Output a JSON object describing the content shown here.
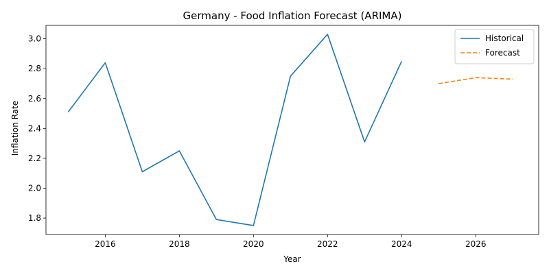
{
  "chart_data": {
    "type": "line",
    "title": "Germany - Food Inflation Forecast (ARIMA)",
    "xlabel": "Year",
    "ylabel": "Inflation Rate",
    "xlim": [
      2014.4,
      2027.7
    ],
    "ylim": [
      1.69,
      3.09
    ],
    "x_ticks": [
      2016,
      2018,
      2020,
      2022,
      2024,
      2026
    ],
    "y_ticks": [
      1.8,
      2.0,
      2.2,
      2.4,
      2.6,
      2.8,
      3.0
    ],
    "grid": false,
    "legend_position": "top-right",
    "series": [
      {
        "name": "Historical",
        "color": "#1f77b4",
        "style": "solid",
        "x": [
          2015,
          2016,
          2017,
          2018,
          2019,
          2020,
          2021,
          2022,
          2023,
          2024
        ],
        "y": [
          2.51,
          2.84,
          2.11,
          2.25,
          1.79,
          1.75,
          2.75,
          3.03,
          2.31,
          2.85
        ]
      },
      {
        "name": "Forecast",
        "color": "#ff7f0e",
        "style": "dashed",
        "x": [
          2025,
          2026,
          2027
        ],
        "y": [
          2.7,
          2.74,
          2.73
        ]
      }
    ]
  }
}
